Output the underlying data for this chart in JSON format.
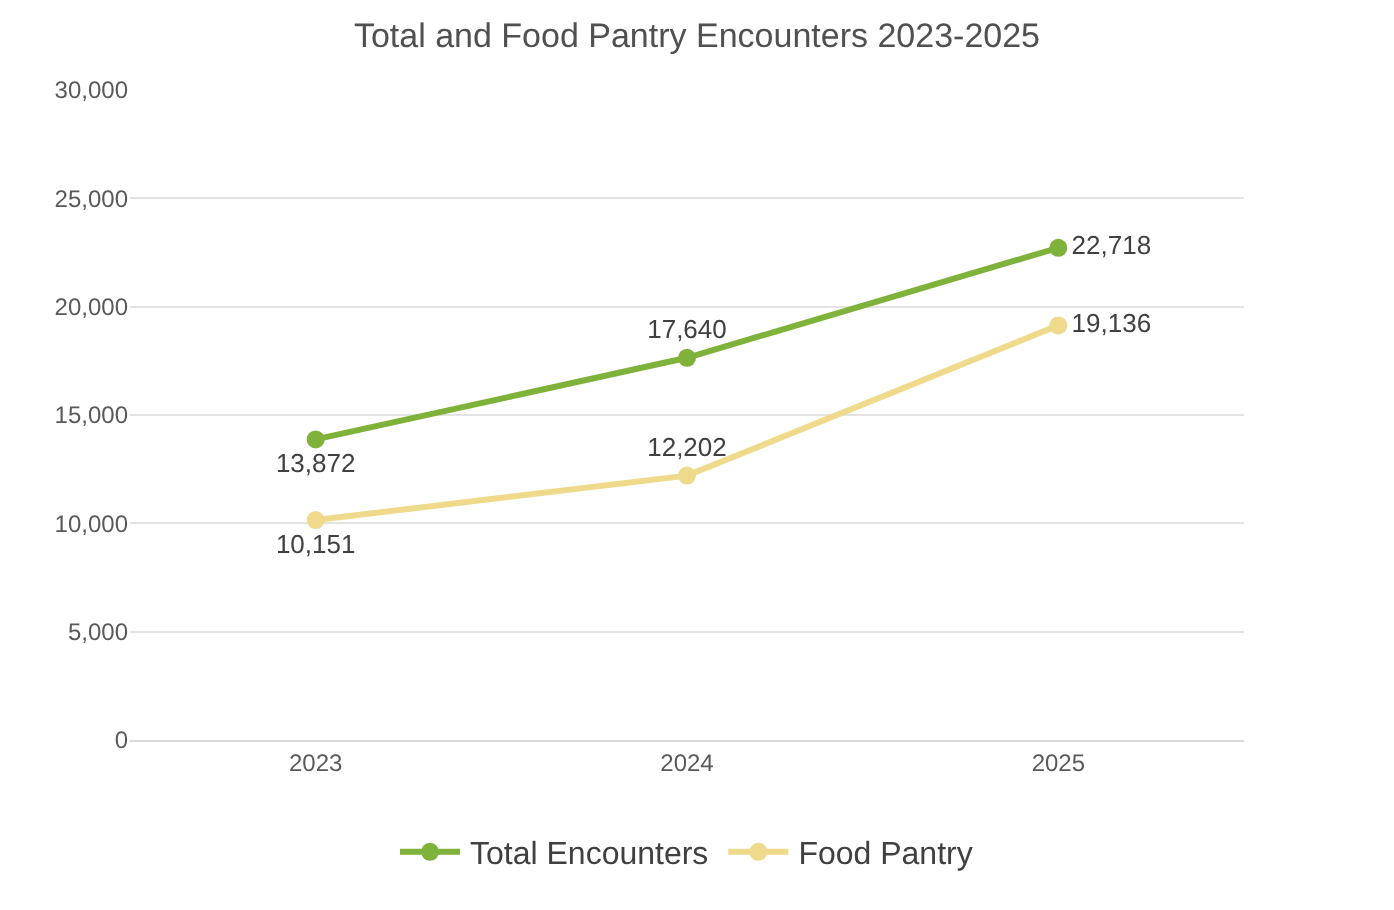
{
  "chart_data": {
    "type": "line",
    "title": "Total and Food Pantry Encounters 2023-2025",
    "categories": [
      "2023",
      "2024",
      "2025"
    ],
    "series": [
      {
        "name": "Total Encounters",
        "color": "#7fb23a",
        "values": [
          13872,
          17640,
          22718
        ],
        "value_labels": [
          "13,872",
          "17,640",
          "22,718"
        ]
      },
      {
        "name": "Food Pantry",
        "color": "#efd98b",
        "values": [
          10151,
          12202,
          19136
        ],
        "value_labels": [
          "10,151",
          "12,202",
          "19,136"
        ]
      }
    ],
    "ylim": [
      0,
      30000
    ],
    "yticks": [
      0,
      {
        "value": 5000,
        "label": "5,000"
      },
      {
        "value": 10000,
        "label": "10,000"
      },
      {
        "value": 15000,
        "label": "15,000"
      },
      {
        "value": 20000,
        "label": "20,000"
      },
      {
        "value": 25000,
        "label": "25,000"
      },
      {
        "value": 30000,
        "label": "30,000"
      }
    ],
    "grid": "y",
    "legend": "bottom",
    "marker": "circle",
    "line_style": "solid"
  }
}
